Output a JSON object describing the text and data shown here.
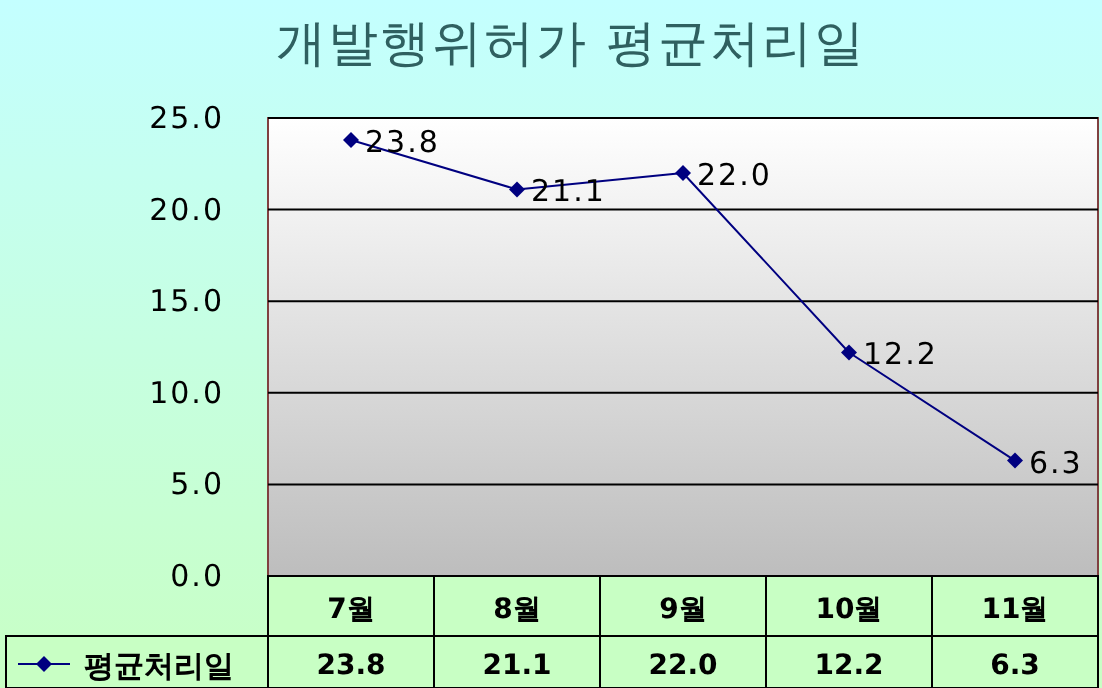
{
  "chart_data": {
    "type": "line",
    "title": "개발행위허가  평균처리일",
    "categories": [
      "7월",
      "8월",
      "9월",
      "10월",
      "11월"
    ],
    "series": [
      {
        "name": "평균처리일",
        "color": "#000080",
        "values": [
          23.8,
          21.1,
          22.0,
          12.2,
          6.3
        ],
        "value_labels": [
          "23.8",
          "21.1",
          "22.0",
          "12.2",
          "6.3"
        ]
      }
    ],
    "ylim": [
      0,
      25
    ],
    "yticks": [
      {
        "value": 0,
        "label": "0.0"
      },
      {
        "value": 5,
        "label": "5.0"
      },
      {
        "value": 10,
        "label": "10.0"
      },
      {
        "value": 15,
        "label": "15.0"
      },
      {
        "value": 20,
        "label": "20.0"
      },
      {
        "value": 25,
        "label": "25.0"
      }
    ],
    "grid": "y",
    "marker": "diamond",
    "line_style": "solid",
    "legend": "bottom left"
  }
}
